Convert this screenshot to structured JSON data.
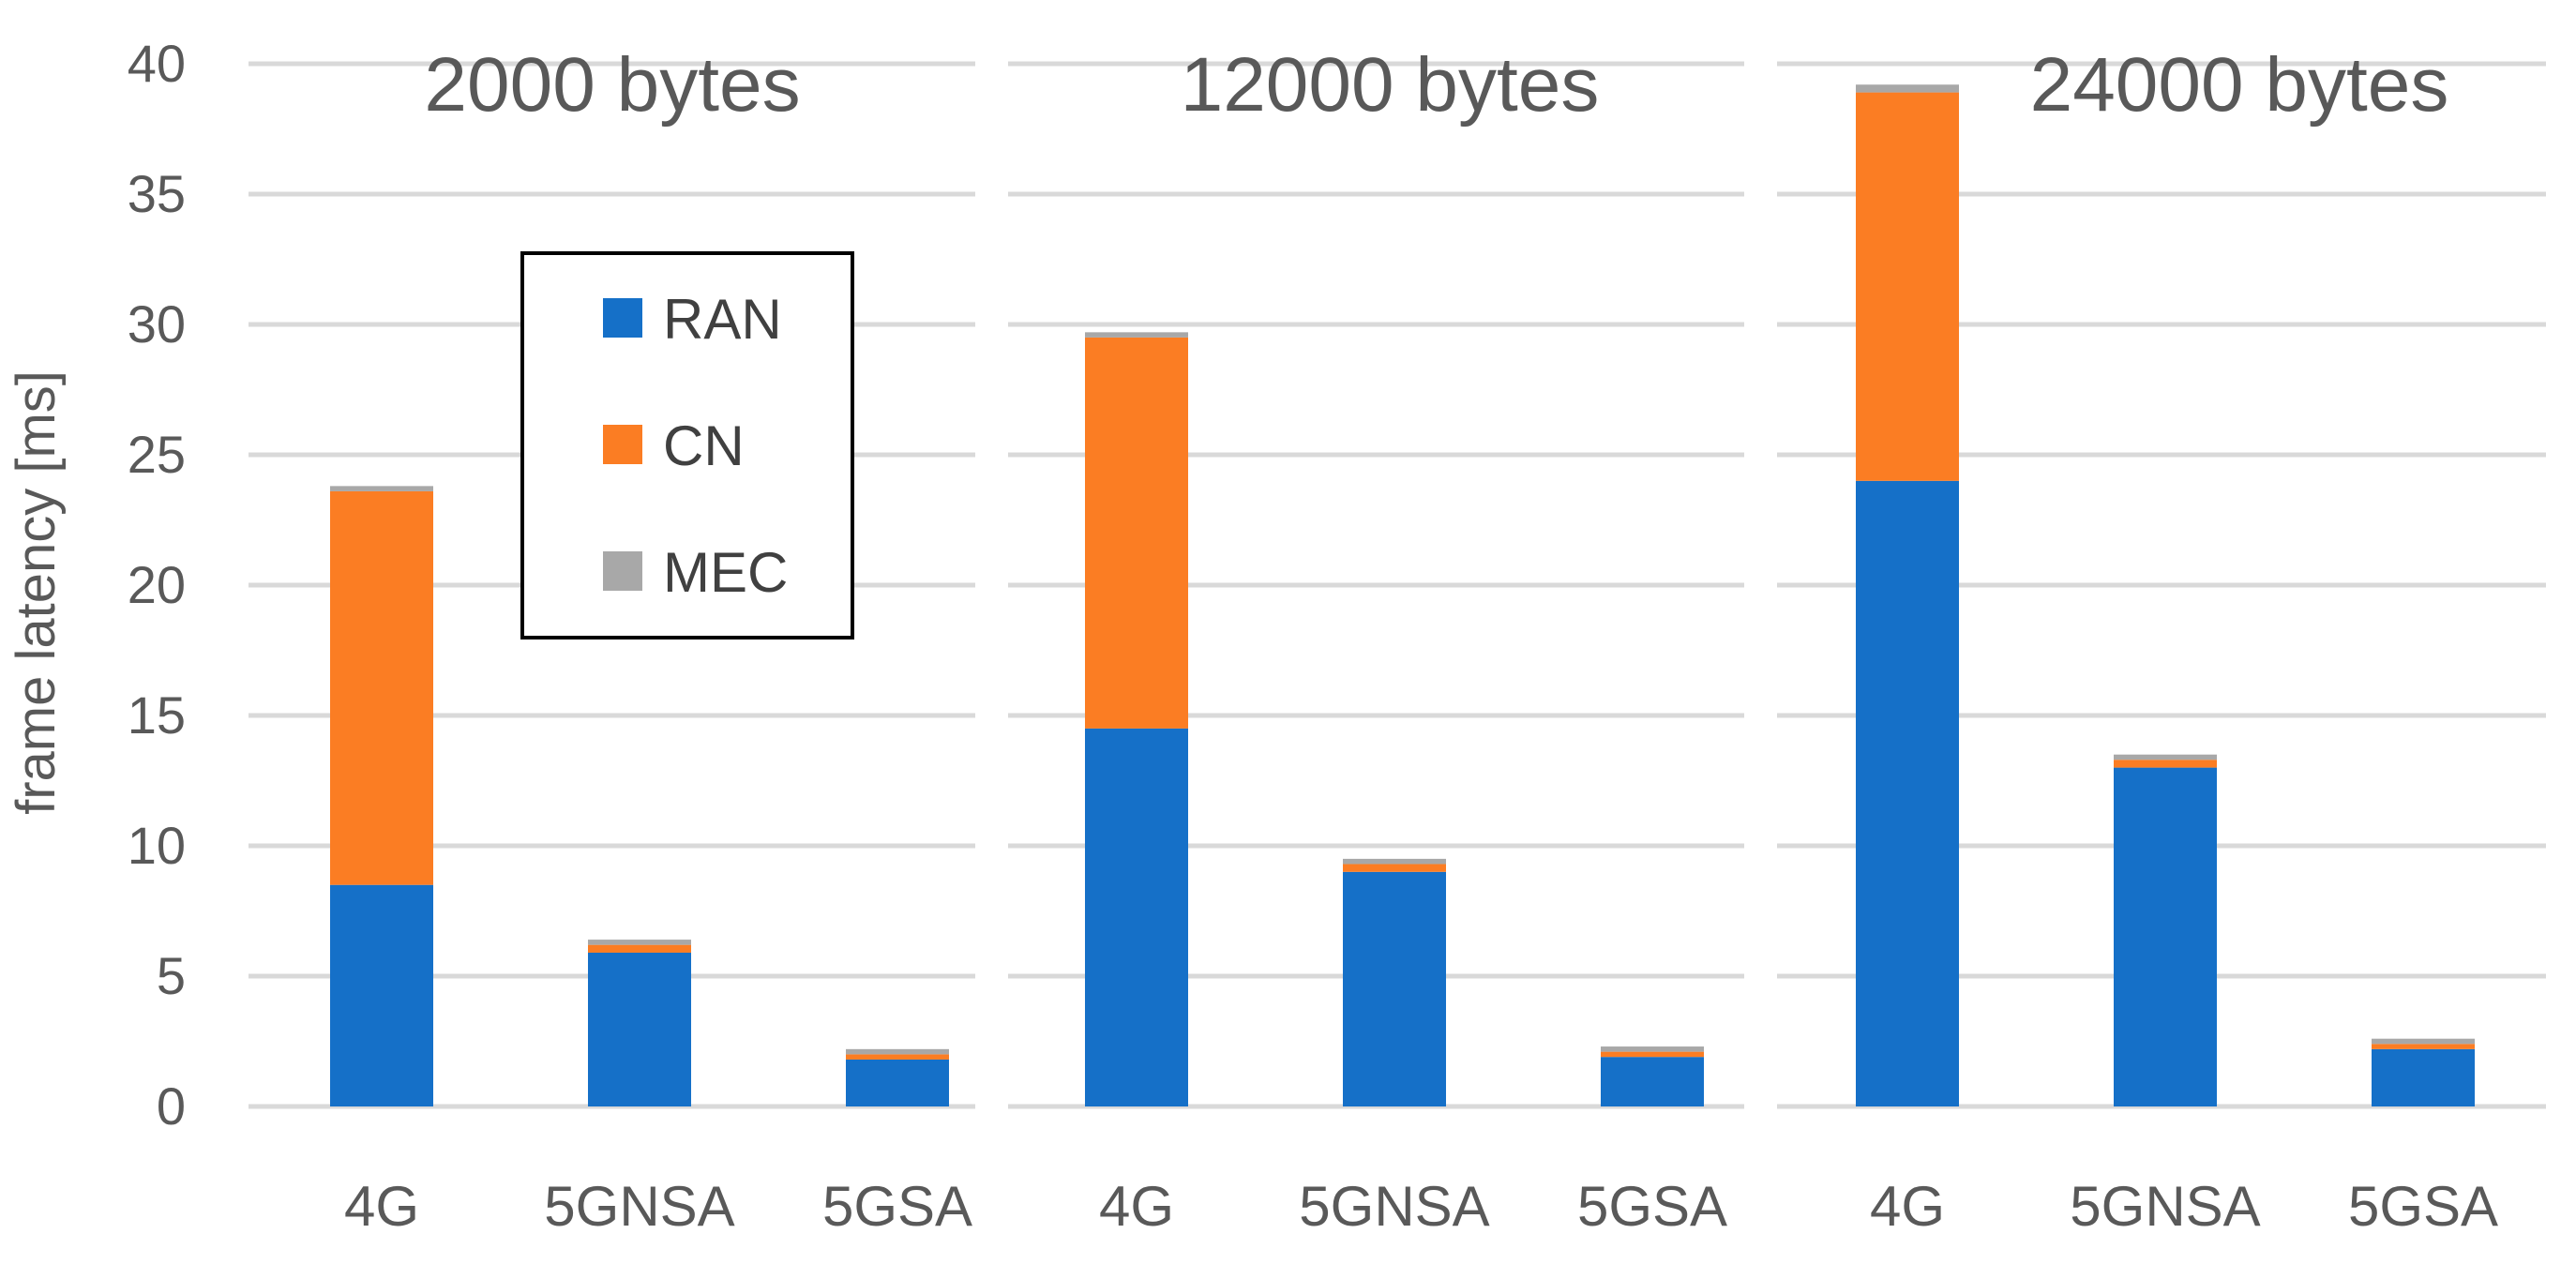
{
  "chart_data": {
    "type": "bar",
    "stacked": true,
    "ylabel": "frame latency [ms]",
    "ylim": [
      0,
      40
    ],
    "yticks": [
      0,
      5,
      10,
      15,
      20,
      25,
      30,
      35,
      40
    ],
    "legend": {
      "placement": "inside top-left of first panel",
      "entries": [
        "RAN",
        "CN",
        "MEC"
      ]
    },
    "colors": {
      "RAN": "#1570c8",
      "CN": "#fb7d23",
      "MEC": "#a8a8a8"
    },
    "panels": [
      {
        "title": "2000 bytes",
        "categories": [
          "4G",
          "5GNSA",
          "5GSA"
        ],
        "series": [
          {
            "name": "RAN",
            "values": [
              8.5,
              5.9,
              1.8
            ]
          },
          {
            "name": "CN",
            "values": [
              15.1,
              0.3,
              0.2
            ]
          },
          {
            "name": "MEC",
            "values": [
              0.2,
              0.2,
              0.2
            ]
          }
        ]
      },
      {
        "title": "12000 bytes",
        "categories": [
          "4G",
          "5GNSA",
          "5GSA"
        ],
        "series": [
          {
            "name": "RAN",
            "values": [
              14.5,
              9.0,
              1.9
            ]
          },
          {
            "name": "CN",
            "values": [
              15.0,
              0.3,
              0.2
            ]
          },
          {
            "name": "MEC",
            "values": [
              0.2,
              0.2,
              0.2
            ]
          }
        ]
      },
      {
        "title": "24000 bytes",
        "categories": [
          "4G",
          "5GNSA",
          "5GSA"
        ],
        "series": [
          {
            "name": "RAN",
            "values": [
              24.0,
              13.0,
              2.2
            ]
          },
          {
            "name": "CN",
            "values": [
              14.9,
              0.3,
              0.2
            ]
          },
          {
            "name": "MEC",
            "values": [
              0.3,
              0.2,
              0.2
            ]
          }
        ]
      }
    ]
  }
}
